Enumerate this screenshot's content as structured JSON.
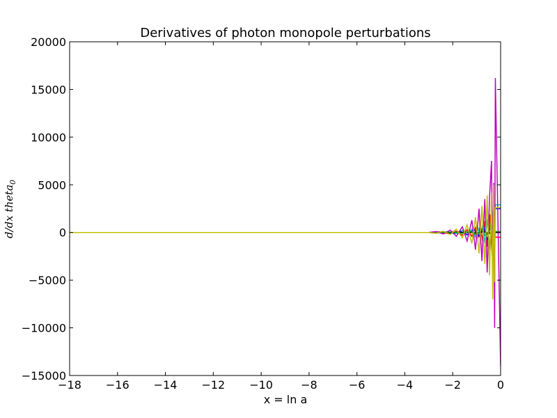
{
  "chart_data": {
    "type": "line",
    "title": "Derivatives of photon monopole perturbations",
    "xlabel": "x = ln a",
    "ylabel": "d/dx theta_0",
    "xlim": [
      -18,
      0
    ],
    "ylim": [
      -15000,
      20000
    ],
    "xticks": [
      -18,
      -16,
      -14,
      -12,
      -10,
      -8,
      -6,
      -4,
      -2,
      0
    ],
    "yticks": [
      -15000,
      -10000,
      -5000,
      0,
      5000,
      10000,
      15000,
      20000
    ],
    "xtick_labels": [
      "−18",
      "−16",
      "−14",
      "−12",
      "−10",
      "−8",
      "−6",
      "−4",
      "−2",
      "0"
    ],
    "ytick_labels": [
      "−15000",
      "−10000",
      "−5000",
      "0",
      "5000",
      "10000",
      "15000",
      "20000"
    ],
    "grid": false,
    "legend": "none",
    "series": [
      {
        "color": "#ff0000",
        "x": [
          -18,
          -3.0,
          -2.6,
          -2.2,
          -1.9,
          -1.6,
          -1.4,
          -1.2,
          -1.05,
          -0.95,
          -0.85,
          -0.75,
          -0.65,
          -0.55,
          -0.45,
          -0.35,
          -0.28,
          -0.22,
          0
        ],
        "y": [
          0,
          0,
          80,
          -120,
          180,
          -300,
          300,
          -400,
          500,
          -600,
          800,
          -900,
          1200,
          -1500,
          1900,
          -2500,
          1500,
          -500,
          -500
        ]
      },
      {
        "color": "#00bfbf",
        "x": [
          -18,
          -3.0,
          -2.6,
          -2.2,
          -1.9,
          -1.6,
          -1.4,
          -1.2,
          -1.05,
          -0.95,
          -0.85,
          -0.75,
          -0.65,
          -0.55,
          -0.45,
          -0.35,
          -0.28,
          -0.22,
          0
        ],
        "y": [
          0,
          0,
          -60,
          100,
          -150,
          250,
          -300,
          350,
          -450,
          550,
          -700,
          850,
          -1100,
          1400,
          -1800,
          2300,
          -1500,
          2900,
          2900
        ]
      },
      {
        "color": "#0000ff",
        "x": [
          -18,
          -3.0,
          -2.5,
          -2.0,
          -1.7,
          -1.4,
          -1.1,
          -0.9,
          -0.7,
          -0.55,
          -0.4,
          -0.3,
          -0.22,
          0
        ],
        "y": [
          0,
          0,
          50,
          -80,
          120,
          -200,
          300,
          -400,
          600,
          -800,
          1200,
          -900,
          2500,
          2500
        ]
      },
      {
        "color": "#000000",
        "x": [
          -18,
          -2.0,
          -1.5,
          -1.0,
          -0.7,
          -0.5,
          -0.3,
          -0.22,
          0
        ],
        "y": [
          0,
          0,
          30,
          -50,
          80,
          -120,
          150,
          0,
          0
        ]
      },
      {
        "color": "#00aa00",
        "x": [
          -18,
          -2.5,
          -2.0,
          -1.6,
          -1.3,
          -1.0,
          -0.8,
          -0.6,
          -0.45,
          -0.32,
          -0.22,
          0
        ],
        "y": [
          0,
          0,
          60,
          -90,
          140,
          -220,
          330,
          -480,
          700,
          -900,
          100,
          100
        ]
      },
      {
        "color": "#bf00bf",
        "x": [
          -18,
          -3.0,
          -2.7,
          -2.4,
          -2.1,
          -1.85,
          -1.6,
          -1.4,
          -1.2,
          -1.05,
          -0.9,
          -0.78,
          -0.66,
          -0.56,
          -0.46,
          -0.38,
          -0.33,
          -0.29,
          -0.25,
          -0.22,
          0
        ],
        "y": [
          0,
          0,
          100,
          -150,
          250,
          -400,
          600,
          -900,
          1300,
          -1800,
          2500,
          -3000,
          3500,
          -4200,
          3800,
          7500,
          -4000,
          5200,
          -10000,
          16200,
          -14000
        ]
      },
      {
        "color": "#bfbf00",
        "x": [
          -18,
          -3.0,
          -2.7,
          -2.4,
          -2.1,
          -1.85,
          -1.6,
          -1.4,
          -1.2,
          -1.05,
          -0.9,
          -0.78,
          -0.66,
          -0.56,
          -0.46,
          -0.38,
          -0.33,
          -0.29,
          -0.25,
          -0.22,
          0
        ],
        "y": [
          0,
          0,
          -90,
          140,
          -220,
          350,
          -550,
          800,
          -1150,
          1600,
          -2200,
          2800,
          -3300,
          3900,
          -4500,
          4200,
          -7000,
          5000,
          -5200,
          2600,
          2600
        ]
      }
    ]
  }
}
